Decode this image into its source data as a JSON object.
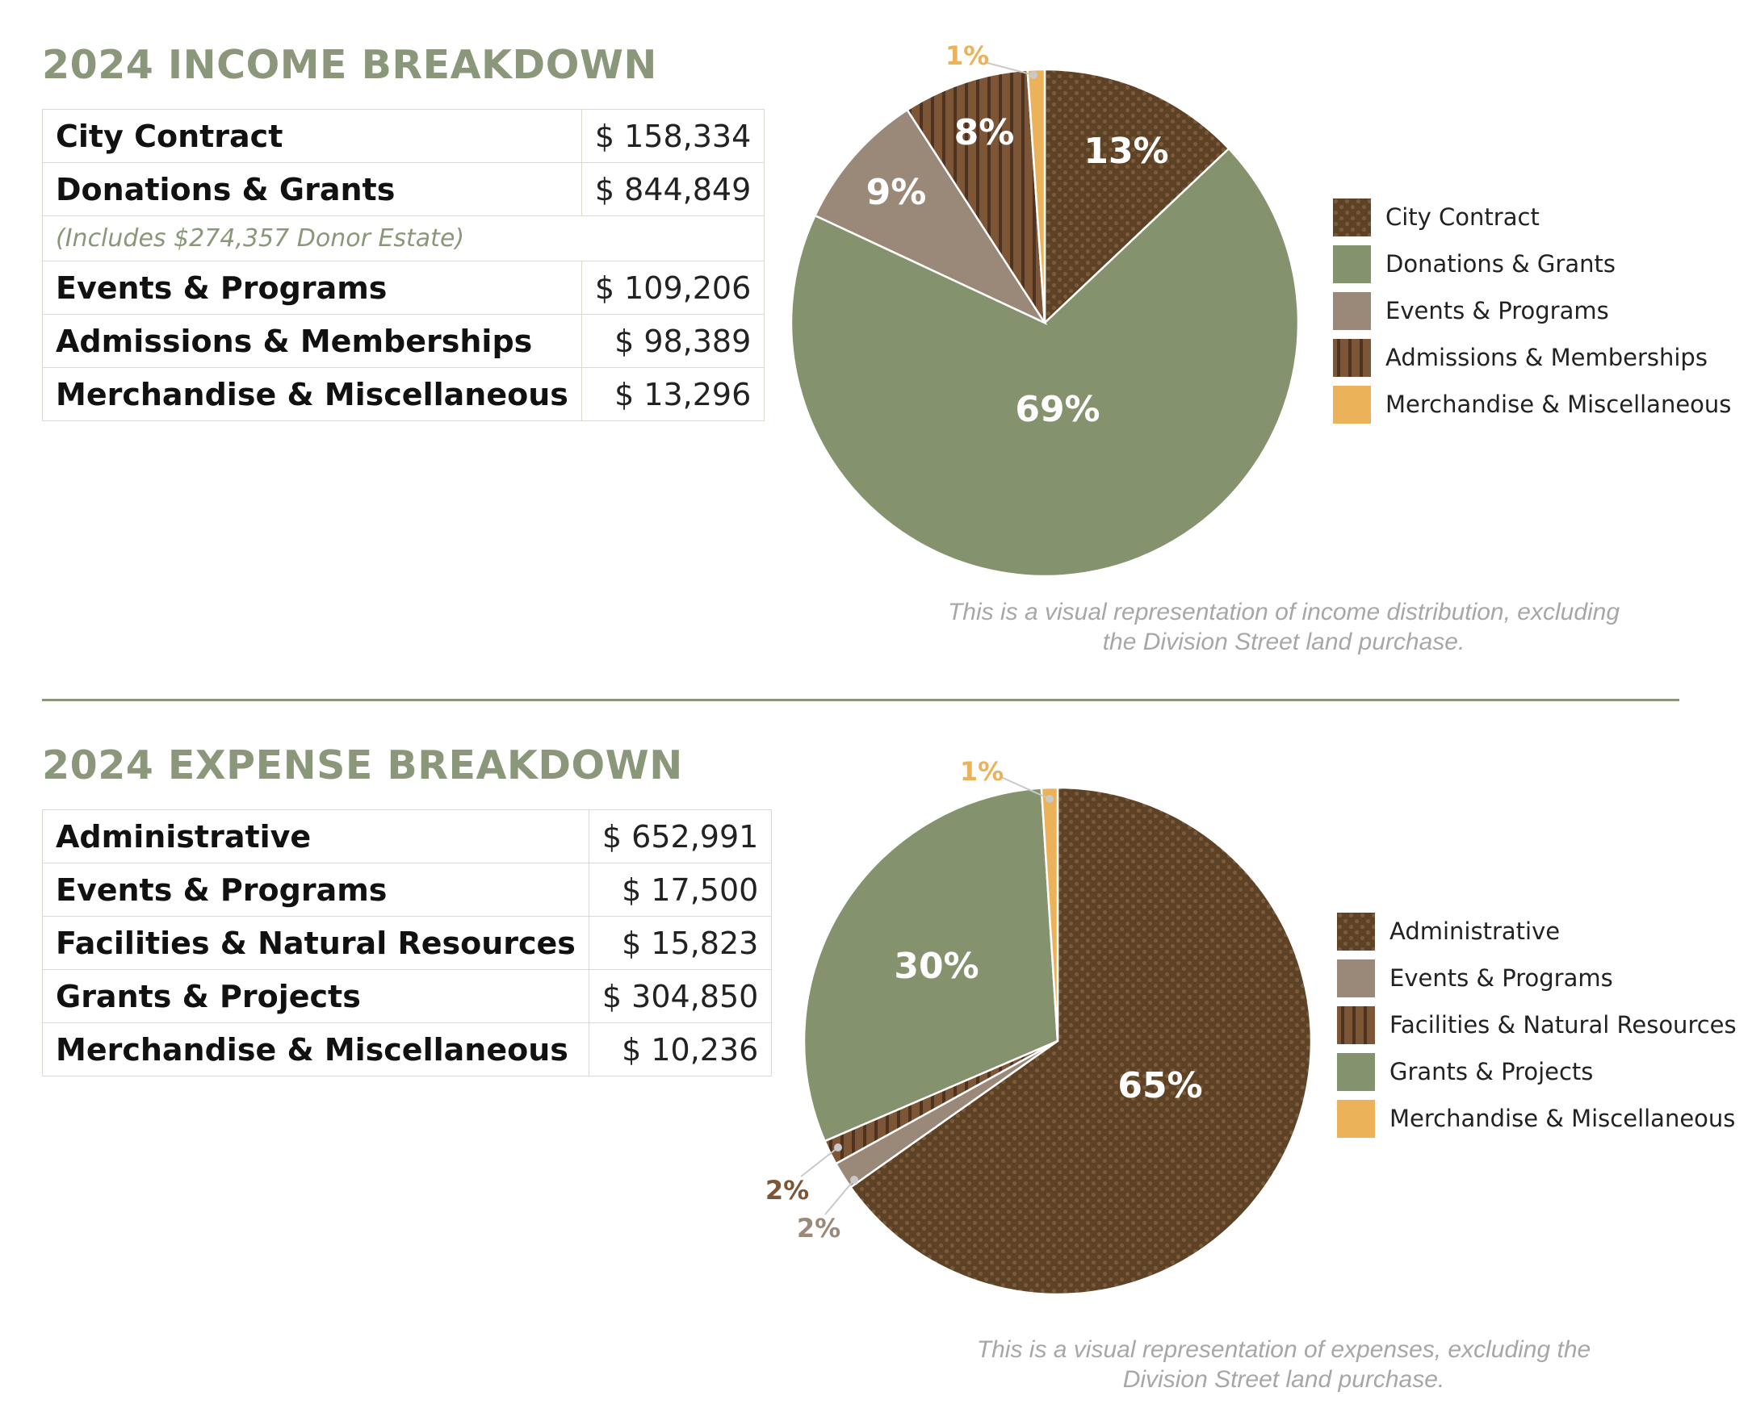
{
  "colors": {
    "title": "#8a977a",
    "divider": "#8a977a",
    "brown": "#5e4226",
    "green": "#84926e",
    "taupe": "#9a8878",
    "stripe": "#7d5638",
    "gold": "#ebb25a",
    "caption": "#a7a7a7"
  },
  "income": {
    "title": "2024 INCOME BREAKDOWN",
    "rows": [
      {
        "label": "City Contract",
        "amount": "$ 158,334"
      },
      {
        "label": "Donations & Grants",
        "amount": "$ 844,849"
      },
      {
        "label": "Events & Programs",
        "amount": "$ 109,206"
      },
      {
        "label": "Admissions & Memberships",
        "amount": "$ 98,389"
      },
      {
        "label": "Merchandise & Miscellaneous",
        "amount": "$ 13,296"
      }
    ],
    "note": "(Includes $274,357 Donor Estate)",
    "caption_line1": "This is a visual representation of income distribution, excluding",
    "caption_line2": "the Division Street land purchase."
  },
  "expense": {
    "title": "2024 EXPENSE BREAKDOWN",
    "rows": [
      {
        "label": "Administrative",
        "amount": "$ 652,991"
      },
      {
        "label": "Events & Programs",
        "amount": "$ 17,500"
      },
      {
        "label": "Facilities & Natural Resources",
        "amount": "$ 15,823"
      },
      {
        "label": "Grants & Projects",
        "amount": "$ 304,850"
      },
      {
        "label": "Merchandise & Miscellaneous",
        "amount": "$ 10,236"
      }
    ],
    "caption_line1": "This is a visual representation of expenses, excluding the",
    "caption_line2": "Division Street land purchase."
  },
  "chart_data": [
    {
      "type": "pie",
      "title": "2024 INCOME BREAKDOWN",
      "slices": [
        {
          "name": "City Contract",
          "value": 158334,
          "label": "13%",
          "fill": "dots"
        },
        {
          "name": "Donations & Grants",
          "value": 844849,
          "label": "69%",
          "fill": "green"
        },
        {
          "name": "Events & Programs",
          "value": 109206,
          "label": "9%",
          "fill": "taupe"
        },
        {
          "name": "Admissions & Memberships",
          "value": 98389,
          "label": "8%",
          "fill": "stripes"
        },
        {
          "name": "Merchandise & Miscellaneous",
          "value": 13296,
          "label": "1%",
          "fill": "gold",
          "callout": true
        }
      ],
      "legend_position": "right"
    },
    {
      "type": "pie",
      "title": "2024 EXPENSE BREAKDOWN",
      "slices": [
        {
          "name": "Administrative",
          "value": 652991,
          "label": "65%",
          "fill": "dots"
        },
        {
          "name": "Events & Programs",
          "value": 17500,
          "label": "2%",
          "fill": "taupe",
          "callout": true
        },
        {
          "name": "Facilities & Natural Resources",
          "value": 15823,
          "label": "2%",
          "fill": "stripes",
          "callout": true
        },
        {
          "name": "Grants & Projects",
          "value": 304850,
          "label": "30%",
          "fill": "green"
        },
        {
          "name": "Merchandise & Miscellaneous",
          "value": 10236,
          "label": "1%",
          "fill": "gold",
          "callout": true
        }
      ],
      "legend_position": "right"
    }
  ]
}
